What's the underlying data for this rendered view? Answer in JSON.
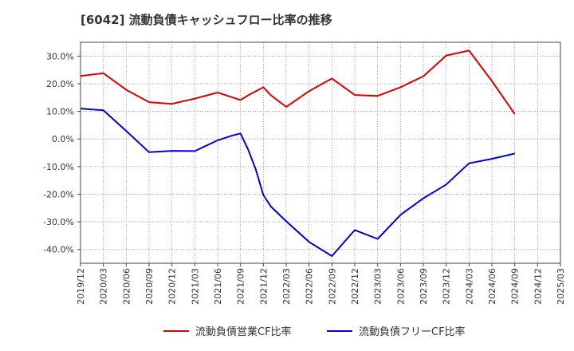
{
  "title": "[6042]  流動負債キャッシュフロー比率の推移",
  "colors": {
    "red": "#dd0000",
    "blue": "#0000dd",
    "grid": "#888888",
    "frame": "#444444"
  },
  "chart_data": {
    "type": "line",
    "title": "[6042]  流動負債キャッシュフロー比率の推移",
    "xlabel": "",
    "ylabel": "",
    "x_ticks": [
      "2019/12",
      "2020/03",
      "2020/06",
      "2020/09",
      "2020/12",
      "2021/03",
      "2021/06",
      "2021/09",
      "2021/12",
      "2022/03",
      "2022/06",
      "2022/09",
      "2022/12",
      "2023/03",
      "2023/06",
      "2023/09",
      "2023/12",
      "2024/03",
      "2024/06",
      "2024/09",
      "2024/12",
      "2025/03"
    ],
    "y_ticks": [
      "30.0%",
      "20.0%",
      "10.0%",
      "0.0%",
      "-10.0%",
      "-20.0%",
      "-30.0%",
      "-40.0%"
    ],
    "y_tick_values": [
      30,
      20,
      10,
      0,
      -10,
      -20,
      -30,
      -40
    ],
    "ylim": [
      -45,
      35
    ],
    "grid": true,
    "legend_position": "bottom",
    "series": [
      {
        "name": "流動負債営業CF比率",
        "color": "#dd0000",
        "points": [
          [
            "2019/12",
            22.8
          ],
          [
            "2020/03",
            23.8
          ],
          [
            "2020/06",
            17.8
          ],
          [
            "2020/09",
            13.3
          ],
          [
            "2020/12",
            12.7
          ],
          [
            "2021/03",
            14.6
          ],
          [
            "2021/06",
            16.8
          ],
          [
            "2021/09",
            14.1
          ],
          [
            "2021/10",
            15.8
          ],
          [
            "2021/12",
            18.7
          ],
          [
            "2022/01",
            15.8
          ],
          [
            "2022/03",
            11.6
          ],
          [
            "2022/06",
            17.3
          ],
          [
            "2022/09",
            21.9
          ],
          [
            "2022/12",
            15.9
          ],
          [
            "2023/03",
            15.6
          ],
          [
            "2023/06",
            18.7
          ],
          [
            "2023/09",
            22.7
          ],
          [
            "2023/12",
            30.2
          ],
          [
            "2024/03",
            32.0
          ],
          [
            "2024/06",
            21.0
          ],
          [
            "2024/09",
            9.0
          ]
        ]
      },
      {
        "name": "流動負債フリーCF比率",
        "color": "#0000dd",
        "points": [
          [
            "2019/12",
            11.0
          ],
          [
            "2020/03",
            10.4
          ],
          [
            "2020/06",
            2.9
          ],
          [
            "2020/09",
            -4.8
          ],
          [
            "2020/12",
            -4.3
          ],
          [
            "2021/03",
            -4.4
          ],
          [
            "2021/06",
            -0.5
          ],
          [
            "2021/08",
            1.3
          ],
          [
            "2021/09",
            2.0
          ],
          [
            "2021/10",
            -3.8
          ],
          [
            "2021/11",
            -11.0
          ],
          [
            "2021/12",
            -20.3
          ],
          [
            "2022/01",
            -24.5
          ],
          [
            "2022/03",
            -29.8
          ],
          [
            "2022/06",
            -37.3
          ],
          [
            "2022/09",
            -42.4
          ],
          [
            "2022/12",
            -33.0
          ],
          [
            "2023/03",
            -36.2
          ],
          [
            "2023/06",
            -27.5
          ],
          [
            "2023/09",
            -21.5
          ],
          [
            "2023/12",
            -16.5
          ],
          [
            "2024/03",
            -8.8
          ],
          [
            "2024/06",
            -7.2
          ],
          [
            "2024/09",
            -5.3
          ]
        ]
      }
    ]
  }
}
